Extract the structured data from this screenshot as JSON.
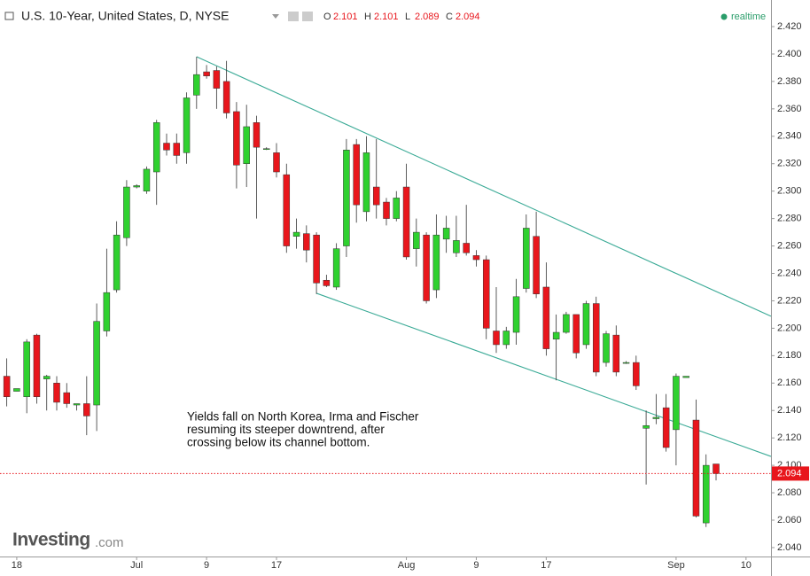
{
  "chart_data": {
    "type": "candlestick",
    "title": "U.S. 10-Year, United States, D, NYSE",
    "header_ohlc": [
      {
        "label": "O",
        "value": 2.101
      },
      {
        "label": "H",
        "value": 2.101
      },
      {
        "label": "L",
        "value": 2.089
      },
      {
        "label": "C",
        "value": 2.094
      }
    ],
    "status": "realtime",
    "annotation": [
      "Yields fall on North Korea, Irma and Fischer",
      "resuming its steeper downtrend, after",
      "crossing below its channel bottom."
    ],
    "logo": "Investing",
    "logo_suffix": ".com",
    "last_price": 2.094,
    "categories": [
      null,
      "18",
      null,
      null,
      null,
      null,
      null,
      null,
      null,
      null,
      null,
      null,
      null,
      "Jul",
      null,
      null,
      null,
      null,
      null,
      null,
      "9",
      null,
      null,
      null,
      null,
      null,
      null,
      "17",
      null,
      null,
      null,
      null,
      null,
      null,
      null,
      null,
      null,
      null,
      null,
      null,
      "Aug",
      null,
      null,
      null,
      null,
      null,
      null,
      "9",
      null,
      null,
      null,
      null,
      null,
      null,
      "17",
      null,
      null,
      null,
      null,
      null,
      null,
      null,
      null,
      null,
      null,
      null,
      null,
      "Sep",
      null,
      null,
      null,
      null,
      null,
      null,
      "10",
      null,
      null
    ],
    "series": {
      "open": [
        2.165,
        2.154,
        2.15,
        2.195,
        2.163,
        2.16,
        2.153,
        2.144,
        2.145,
        2.144,
        2.198,
        2.228,
        2.266,
        2.303,
        2.3,
        2.314,
        2.335,
        2.335,
        2.328,
        2.37,
        2.387,
        2.388,
        2.38,
        2.358,
        2.32,
        2.35,
        2.331,
        2.328,
        2.312,
        2.267,
        2.269,
        2.268,
        2.235,
        2.23,
        2.26,
        2.334,
        2.285,
        2.303,
        2.292,
        2.28,
        2.303,
        2.258,
        2.268,
        2.228,
        2.265,
        2.255,
        2.262,
        2.253,
        2.25,
        2.198,
        2.188,
        2.197,
        2.229,
        2.267,
        2.23,
        2.192,
        2.197,
        2.21,
        2.188,
        2.218,
        2.175,
        2.195,
        2.175,
        2.175,
        2.127,
        2.134,
        2.142,
        2.126,
        2.164,
        2.133,
        2.058,
        2.101,
        null,
        null,
        null,
        null,
        null
      ],
      "high": [
        2.178,
        2.156,
        2.192,
        2.196,
        2.166,
        2.165,
        2.16,
        2.145,
        2.165,
        2.218,
        2.258,
        2.278,
        2.308,
        2.305,
        2.318,
        2.352,
        2.342,
        2.342,
        2.372,
        2.398,
        2.392,
        2.391,
        2.395,
        2.365,
        2.363,
        2.355,
        2.332,
        2.335,
        2.32,
        2.28,
        2.275,
        2.27,
        2.239,
        2.262,
        2.338,
        2.338,
        2.34,
        2.338,
        2.295,
        2.3,
        2.32,
        2.28,
        2.27,
        2.283,
        2.282,
        2.282,
        2.29,
        2.257,
        2.253,
        2.23,
        2.201,
        2.236,
        2.283,
        2.285,
        2.248,
        2.21,
        2.212,
        2.21,
        2.22,
        2.223,
        2.198,
        2.202,
        2.176,
        2.18,
        2.14,
        2.152,
        2.152,
        2.167,
        2.165,
        2.148,
        2.108,
        2.101,
        null,
        null,
        null,
        null,
        null
      ],
      "low": [
        2.143,
        2.154,
        2.138,
        2.145,
        2.14,
        2.14,
        2.142,
        2.14,
        2.122,
        2.125,
        2.194,
        2.226,
        2.26,
        2.302,
        2.298,
        2.29,
        2.326,
        2.32,
        2.32,
        2.36,
        2.382,
        2.36,
        2.353,
        2.302,
        2.303,
        2.28,
        2.33,
        2.31,
        2.255,
        2.258,
        2.248,
        2.225,
        2.23,
        2.228,
        2.252,
        2.277,
        2.278,
        2.28,
        2.275,
        2.278,
        2.25,
        2.245,
        2.218,
        2.222,
        2.255,
        2.252,
        2.253,
        2.245,
        2.192,
        2.182,
        2.185,
        2.188,
        2.226,
        2.222,
        2.18,
        2.162,
        2.196,
        2.178,
        2.185,
        2.165,
        2.172,
        2.165,
        2.174,
        2.155,
        2.086,
        2.13,
        2.11,
        2.1,
        2.164,
        2.062,
        2.055,
        2.089,
        null,
        null,
        null,
        null,
        null
      ],
      "close": [
        2.15,
        2.156,
        2.19,
        2.15,
        2.165,
        2.146,
        2.145,
        2.145,
        2.136,
        2.205,
        2.226,
        2.268,
        2.303,
        2.304,
        2.316,
        2.35,
        2.33,
        2.326,
        2.368,
        2.385,
        2.384,
        2.375,
        2.357,
        2.319,
        2.347,
        2.332,
        2.331,
        2.314,
        2.26,
        2.27,
        2.257,
        2.233,
        2.231,
        2.258,
        2.33,
        2.29,
        2.328,
        2.29,
        2.28,
        2.295,
        2.252,
        2.27,
        2.22,
        2.268,
        2.273,
        2.264,
        2.255,
        2.25,
        2.2,
        2.188,
        2.198,
        2.223,
        2.273,
        2.225,
        2.185,
        2.197,
        2.21,
        2.182,
        2.218,
        2.168,
        2.196,
        2.168,
        2.175,
        2.158,
        2.129,
        2.135,
        2.113,
        2.165,
        2.165,
        2.063,
        2.1,
        2.094,
        null,
        null,
        null,
        null,
        null
      ]
    },
    "up_color": "#2fd12f",
    "down_color": "#e8161c",
    "trendlines": [
      {
        "x": [
          19.0,
          76.5
        ],
        "y": [
          2.398,
          2.2087
        ],
        "color": "#3aaa96"
      },
      {
        "x": [
          31.0,
          76.5
        ],
        "y": [
          2.2255,
          2.1065
        ],
        "color": "#3aaa96"
      }
    ],
    "ylim": [
      2.0335,
      2.4394
    ],
    "yticks": [
      {
        "value": 2.04,
        "label": "2.040"
      },
      {
        "value": 2.06,
        "label": "2.060"
      },
      {
        "value": 2.08,
        "label": "2.080"
      },
      {
        "value": 2.1,
        "label": "2.100"
      },
      {
        "value": 2.12,
        "label": "2.120"
      },
      {
        "value": 2.14,
        "label": "2.140"
      },
      {
        "value": 2.16,
        "label": "2.160"
      },
      {
        "value": 2.18,
        "label": "2.180"
      },
      {
        "value": 2.2,
        "label": "2.200"
      },
      {
        "value": 2.22,
        "label": "2.220"
      },
      {
        "value": 2.24,
        "label": "2.240"
      },
      {
        "value": 2.26,
        "label": "2.260"
      },
      {
        "value": 2.28,
        "label": "2.280"
      },
      {
        "value": 2.3,
        "label": "2.300"
      },
      {
        "value": 2.32,
        "label": "2.320"
      },
      {
        "value": 2.34,
        "label": "2.340"
      },
      {
        "value": 2.36,
        "label": "2.360"
      },
      {
        "value": 2.38,
        "label": "2.380"
      },
      {
        "value": 2.4,
        "label": "2.400"
      },
      {
        "value": 2.42,
        "label": "2.420"
      }
    ]
  }
}
